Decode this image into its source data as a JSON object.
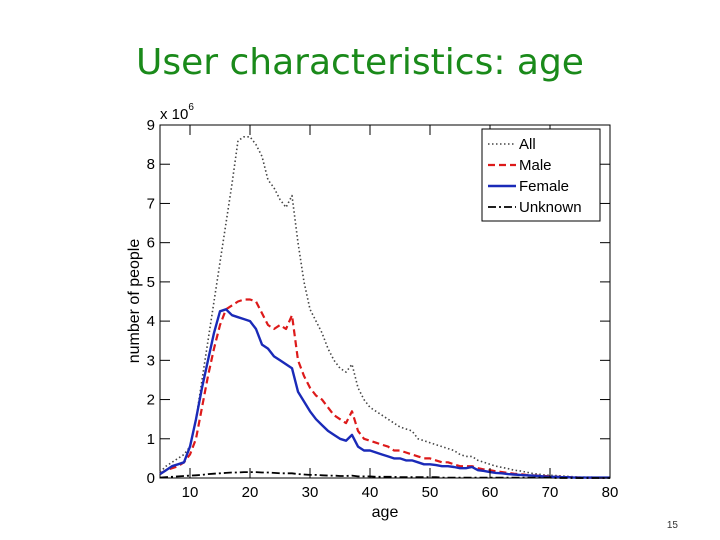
{
  "slide": {
    "title": "User characteristics: age",
    "page_number": "15"
  },
  "chart_data": {
    "type": "line",
    "title": "",
    "xlabel": "age",
    "ylabel": "number of people",
    "y_multiplier": "x 10",
    "y_multiplier_exponent": "6",
    "xlim": [
      5,
      80
    ],
    "ylim": [
      0,
      9
    ],
    "x_ticks": [
      10,
      20,
      30,
      40,
      50,
      60,
      70,
      80
    ],
    "y_ticks": [
      0,
      1,
      2,
      3,
      4,
      5,
      6,
      7,
      8,
      9
    ],
    "grid": false,
    "legend_position": "top-right",
    "x": [
      5,
      6,
      7,
      8,
      9,
      10,
      11,
      12,
      13,
      14,
      15,
      16,
      17,
      18,
      19,
      20,
      21,
      22,
      23,
      24,
      25,
      26,
      27,
      28,
      29,
      30,
      31,
      32,
      33,
      34,
      35,
      36,
      37,
      38,
      39,
      40,
      41,
      42,
      43,
      44,
      45,
      46,
      47,
      48,
      49,
      50,
      51,
      52,
      53,
      54,
      55,
      56,
      57,
      58,
      59,
      60,
      61,
      62,
      63,
      64,
      65,
      66,
      67,
      68,
      69,
      70,
      71,
      72,
      73,
      74,
      75,
      76,
      77,
      78,
      79,
      80
    ],
    "series": [
      {
        "name": "All",
        "color": "#444444",
        "style": "dotted",
        "values": [
          0.15,
          0.3,
          0.4,
          0.5,
          0.6,
          0.8,
          1.5,
          2.5,
          3.5,
          4.5,
          5.5,
          6.5,
          7.5,
          8.6,
          8.7,
          8.7,
          8.5,
          8.2,
          7.6,
          7.4,
          7.1,
          6.9,
          7.2,
          6.0,
          5.0,
          4.3,
          4.0,
          3.7,
          3.3,
          3.0,
          2.8,
          2.7,
          2.9,
          2.3,
          2.0,
          1.8,
          1.7,
          1.6,
          1.5,
          1.4,
          1.3,
          1.25,
          1.2,
          1.0,
          0.95,
          0.9,
          0.85,
          0.8,
          0.75,
          0.7,
          0.6,
          0.55,
          0.55,
          0.45,
          0.4,
          0.35,
          0.3,
          0.27,
          0.24,
          0.2,
          0.18,
          0.15,
          0.12,
          0.1,
          0.08,
          0.07,
          0.06,
          0.05,
          0.04,
          0.03,
          0.02,
          0.02,
          0.02,
          0.01,
          0.01,
          0.01
        ]
      },
      {
        "name": "Male",
        "color": "#dd1a1a",
        "style": "dashed",
        "values": [
          0.1,
          0.2,
          0.25,
          0.3,
          0.4,
          0.6,
          1.0,
          1.8,
          2.6,
          3.3,
          3.9,
          4.3,
          4.4,
          4.5,
          4.55,
          4.55,
          4.5,
          4.2,
          3.9,
          3.8,
          3.9,
          3.8,
          4.15,
          3.0,
          2.6,
          2.3,
          2.1,
          2.0,
          1.8,
          1.6,
          1.5,
          1.4,
          1.7,
          1.2,
          1.0,
          0.95,
          0.9,
          0.85,
          0.8,
          0.7,
          0.7,
          0.65,
          0.6,
          0.55,
          0.5,
          0.5,
          0.45,
          0.4,
          0.4,
          0.35,
          0.3,
          0.3,
          0.3,
          0.25,
          0.22,
          0.2,
          0.17,
          0.15,
          0.13,
          0.11,
          0.1,
          0.08,
          0.07,
          0.06,
          0.05,
          0.04,
          0.03,
          0.03,
          0.02,
          0.02,
          0.01,
          0.01,
          0.01,
          0.01,
          0.01,
          0.01
        ]
      },
      {
        "name": "Female",
        "color": "#1a2ab8",
        "style": "solid",
        "values": [
          0.1,
          0.2,
          0.3,
          0.35,
          0.4,
          0.8,
          1.5,
          2.3,
          3.0,
          3.7,
          4.25,
          4.3,
          4.15,
          4.1,
          4.05,
          4.0,
          3.8,
          3.4,
          3.3,
          3.1,
          3.0,
          2.9,
          2.8,
          2.2,
          1.95,
          1.7,
          1.5,
          1.35,
          1.2,
          1.1,
          1.0,
          0.95,
          1.1,
          0.8,
          0.7,
          0.7,
          0.65,
          0.6,
          0.55,
          0.5,
          0.5,
          0.45,
          0.45,
          0.4,
          0.35,
          0.35,
          0.33,
          0.3,
          0.3,
          0.28,
          0.25,
          0.25,
          0.28,
          0.2,
          0.18,
          0.15,
          0.13,
          0.12,
          0.1,
          0.09,
          0.08,
          0.07,
          0.06,
          0.05,
          0.04,
          0.03,
          0.03,
          0.02,
          0.02,
          0.01,
          0.01,
          0.01,
          0.01,
          0.01,
          0.01,
          0.01
        ]
      },
      {
        "name": "Unknown",
        "color": "#000000",
        "style": "dashdot",
        "values": [
          0.01,
          0.02,
          0.03,
          0.04,
          0.05,
          0.06,
          0.07,
          0.08,
          0.1,
          0.11,
          0.12,
          0.13,
          0.14,
          0.14,
          0.15,
          0.15,
          0.15,
          0.14,
          0.14,
          0.13,
          0.12,
          0.12,
          0.12,
          0.1,
          0.09,
          0.08,
          0.08,
          0.07,
          0.06,
          0.06,
          0.05,
          0.05,
          0.06,
          0.04,
          0.04,
          0.04,
          0.03,
          0.03,
          0.03,
          0.03,
          0.02,
          0.02,
          0.02,
          0.02,
          0.02,
          0.02,
          0.02,
          0.01,
          0.01,
          0.01,
          0.01,
          0.01,
          0.01,
          0.01,
          0.01,
          0.01,
          0.01,
          0.01,
          0.01,
          0.01,
          0.01,
          0.01,
          0.01,
          0.01,
          0.01,
          0.01,
          0.0,
          0.0,
          0.0,
          0.0,
          0.0,
          0.0,
          0.0,
          0.0,
          0.0,
          0.0
        ]
      }
    ]
  }
}
